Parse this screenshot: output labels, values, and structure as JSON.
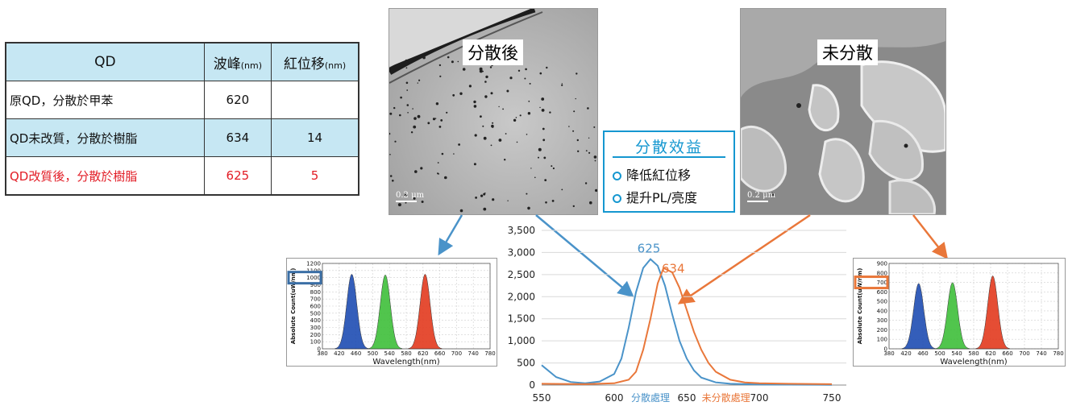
{
  "table": {
    "headers": {
      "qd": "QD",
      "peak": "波峰",
      "peak_unit": "(nm)",
      "shift": "紅位移",
      "shift_unit": "(nm)"
    },
    "rows": [
      {
        "name": "原QD，分散於甲苯",
        "peak": "620",
        "shift": ""
      },
      {
        "name": "QD未改質，分散於樹脂",
        "peak": "634",
        "shift": "14"
      },
      {
        "name": "QD改質後，分散於樹脂",
        "peak": "625",
        "shift": "5"
      }
    ]
  },
  "tem": {
    "dispersed_label": "分散後",
    "undispersed_label": "未分散",
    "scale_text": "0.2 μm"
  },
  "benefit": {
    "title": "分散效益",
    "items": [
      "降低紅位移",
      "提升PL/亮度"
    ]
  },
  "colors": {
    "blue_series": "#4a93c9",
    "orange_series": "#e9773a",
    "highlight_red": "#e21c25",
    "accent": "#1597d0"
  },
  "chart_data": {
    "type": "line",
    "ylim": [
      0,
      3500
    ],
    "xlim": [
      550,
      760
    ],
    "x_ticks": [
      "550",
      "600",
      "650",
      "700",
      "750"
    ],
    "y_ticks": [
      "0",
      "500",
      "1,000",
      "1,500",
      "2,000",
      "2,500",
      "3,000",
      "3,500"
    ],
    "series": [
      {
        "name": "分散處理",
        "color": "#4a93c9",
        "x": [
          550,
          560,
          570,
          580,
          590,
          600,
          605,
          610,
          615,
          620,
          625,
          630,
          635,
          640,
          645,
          650,
          655,
          660,
          670,
          680,
          690,
          700,
          720,
          750
        ],
        "y": [
          450,
          180,
          70,
          40,
          80,
          250,
          600,
          1300,
          2100,
          2650,
          2850,
          2700,
          2250,
          1600,
          1000,
          600,
          330,
          170,
          60,
          30,
          20,
          15,
          10,
          5
        ]
      },
      {
        "name": "未分散處理",
        "color": "#e9773a",
        "x": [
          550,
          580,
          600,
          610,
          615,
          620,
          625,
          630,
          634,
          640,
          645,
          650,
          655,
          660,
          665,
          670,
          680,
          690,
          700,
          720,
          750
        ],
        "y": [
          30,
          20,
          40,
          120,
          300,
          800,
          1500,
          2300,
          2650,
          2550,
          2200,
          1700,
          1200,
          800,
          500,
          300,
          120,
          60,
          40,
          30,
          20
        ]
      }
    ],
    "peak_labels": [
      {
        "text": "625",
        "x": 625,
        "y": 2850
      },
      {
        "text": "634",
        "x": 634,
        "y": 2650
      }
    ]
  },
  "spectra": {
    "left": {
      "y_label": "Absolute Count(uW/nm)",
      "x_label": "Wavelength(nm)",
      "y_ticks": [
        "0",
        "100",
        "200",
        "300",
        "400",
        "500",
        "600",
        "700",
        "800",
        "900",
        "1000",
        "1100",
        "1200"
      ],
      "x_ticks": [
        "380",
        "420",
        "460",
        "500",
        "540",
        "580",
        "620",
        "660",
        "700",
        "740",
        "780"
      ],
      "ymax": 1200,
      "peaks": [
        {
          "nm": 450,
          "height": 1050,
          "color": "#1f4db3"
        },
        {
          "nm": 530,
          "height": 1040,
          "color": "#3fbf3a"
        },
        {
          "nm": 625,
          "height": 1050,
          "color": "#e33a1f"
        }
      ]
    },
    "right": {
      "y_label": "Absolute Count(uW/nm)",
      "x_label": "Wavelength(nm)",
      "y_ticks": [
        "0",
        "100",
        "200",
        "300",
        "400",
        "500",
        "600",
        "700",
        "800",
        "900"
      ],
      "x_ticks": [
        "380",
        "420",
        "460",
        "500",
        "540",
        "580",
        "620",
        "660",
        "700",
        "740",
        "780"
      ],
      "ymax": 900,
      "peaks": [
        {
          "nm": 450,
          "height": 690,
          "color": "#1f4db3"
        },
        {
          "nm": 530,
          "height": 700,
          "color": "#3fbf3a"
        },
        {
          "nm": 625,
          "height": 770,
          "color": "#e33a1f"
        }
      ]
    }
  }
}
